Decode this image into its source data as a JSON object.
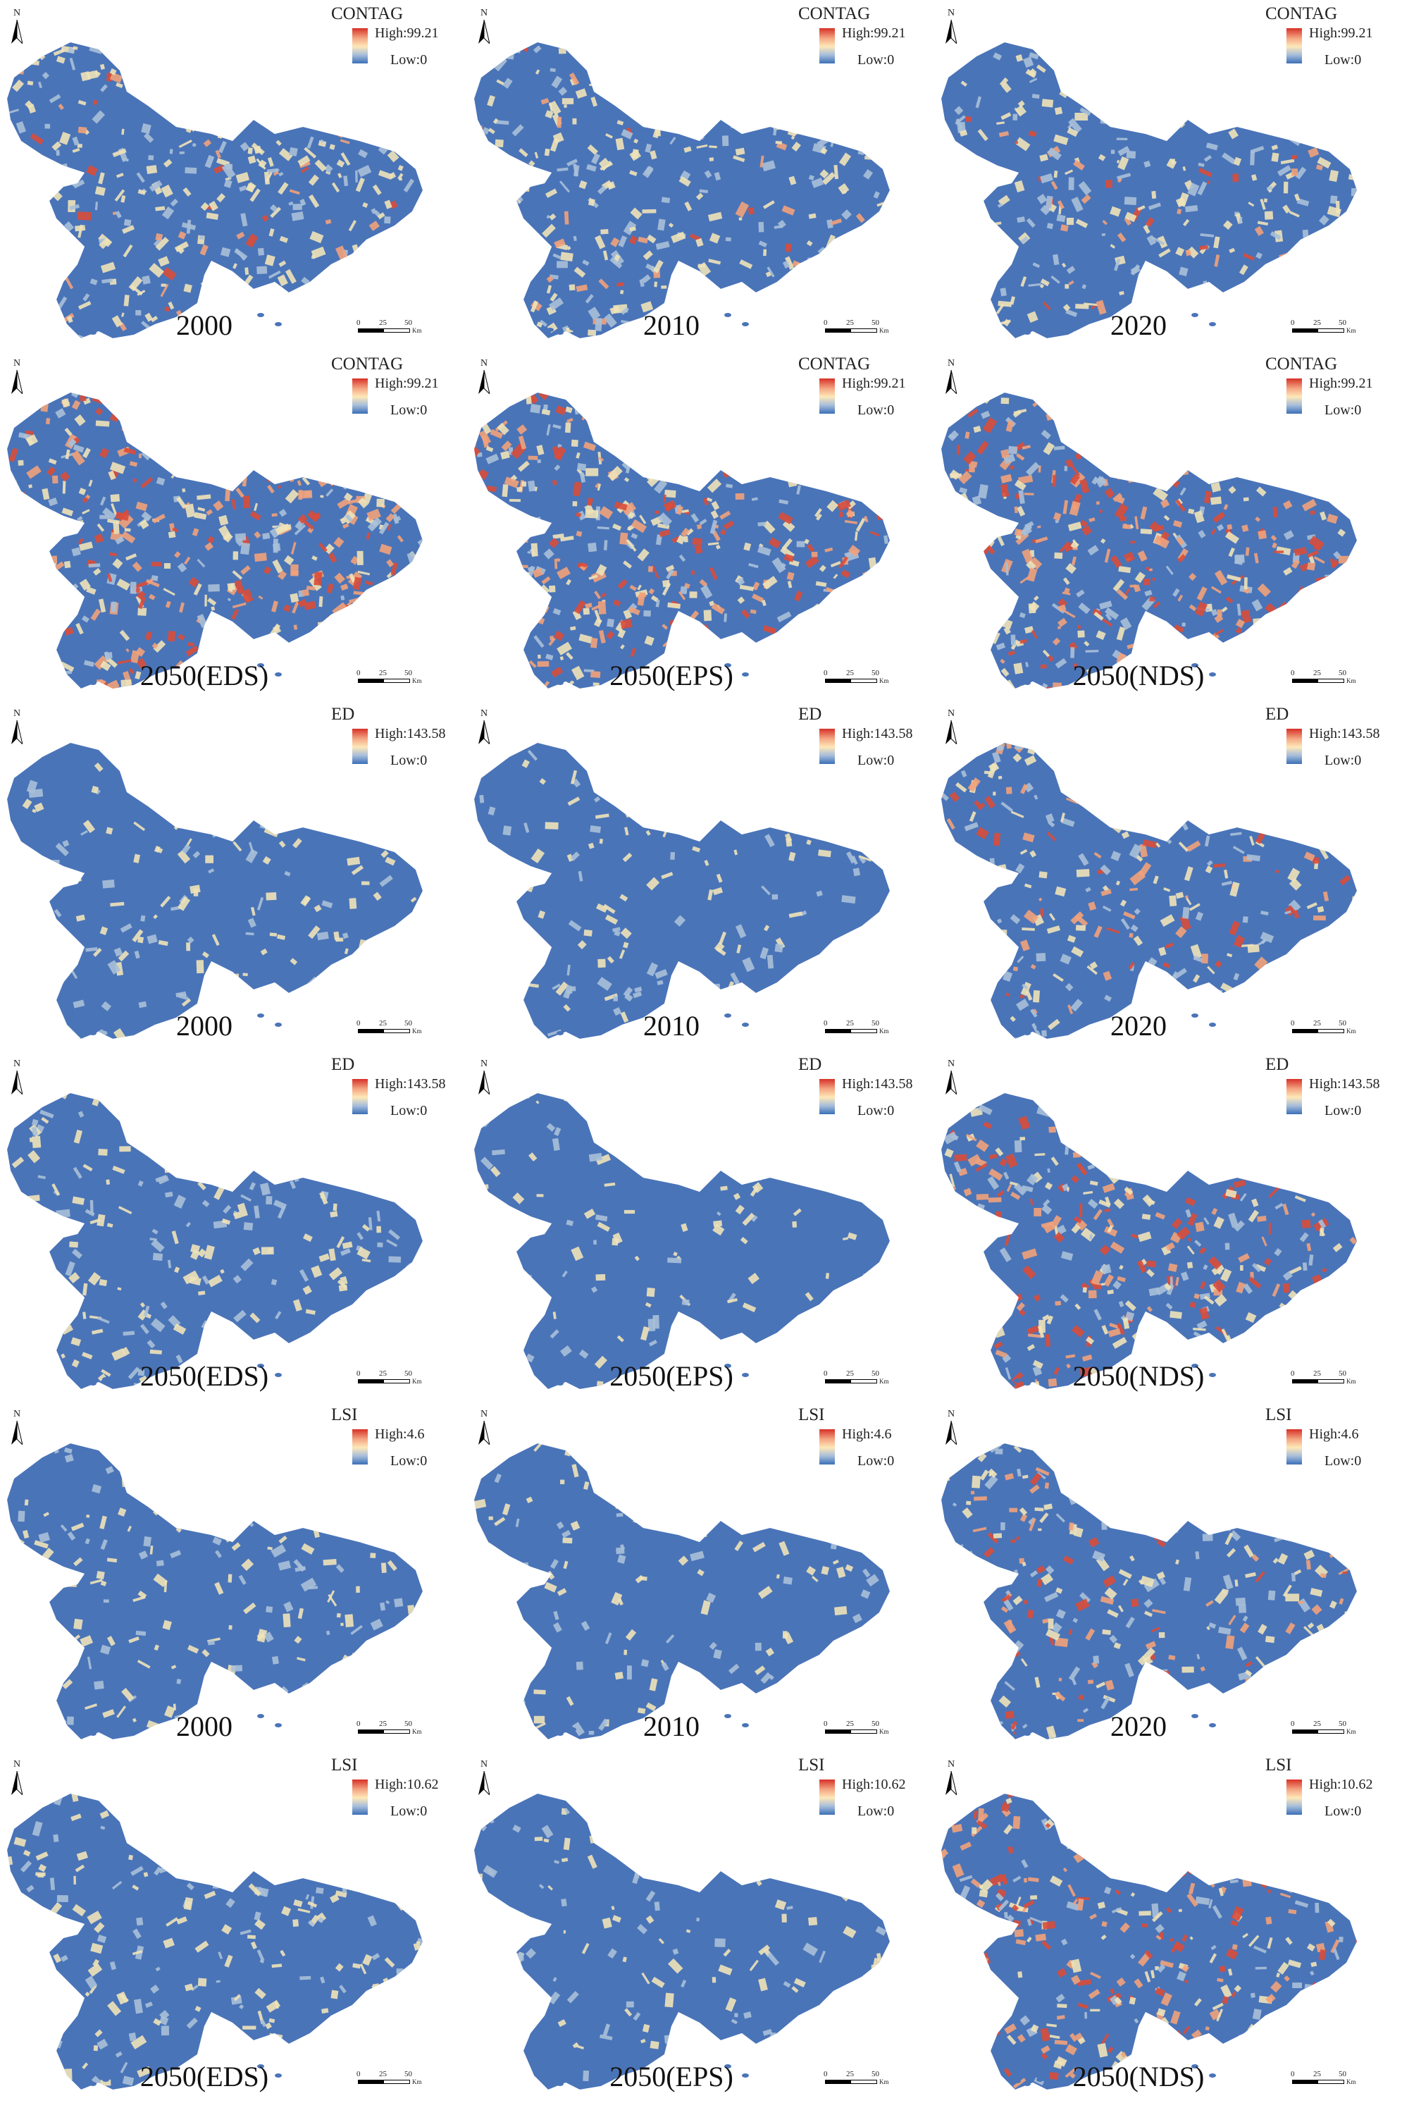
{
  "unit_label": "Km",
  "scale_ticks": [
    "0",
    "25",
    "50"
  ],
  "north_label": "N",
  "panels": [
    {
      "index": "CONTAG",
      "high": "High:99.21",
      "low": "Low:0",
      "year": "2000",
      "heat": 0.55,
      "warm": 0.1
    },
    {
      "index": "CONTAG",
      "high": "High:99.21",
      "low": "Low:0",
      "year": "2010",
      "heat": 0.55,
      "warm": 0.1
    },
    {
      "index": "CONTAG",
      "high": "High:99.21",
      "low": "Low:0",
      "year": "2020",
      "heat": 0.5,
      "warm": 0.08
    },
    {
      "index": "CONTAG",
      "high": "High:99.21",
      "low": "Low:0",
      "year": "2050(EDS)",
      "heat": 0.7,
      "warm": 0.45
    },
    {
      "index": "CONTAG",
      "high": "High:99.21",
      "low": "Low:0",
      "year": "2050(EPS)",
      "heat": 0.72,
      "warm": 0.4
    },
    {
      "index": "CONTAG",
      "high": "High:99.21",
      "low": "Low:0",
      "year": "2050(NDS)",
      "heat": 0.7,
      "warm": 0.45
    },
    {
      "index": "ED",
      "high": "High:143.58",
      "low": "Low:0",
      "year": "2000",
      "heat": 0.25,
      "warm": 0.0
    },
    {
      "index": "ED",
      "high": "High:143.58",
      "low": "Low:0",
      "year": "2010",
      "heat": 0.22,
      "warm": 0.0
    },
    {
      "index": "ED",
      "high": "High:143.58",
      "low": "Low:0",
      "year": "2020",
      "heat": 0.45,
      "warm": 0.18
    },
    {
      "index": "ED",
      "high": "High:143.58",
      "low": "Low:0",
      "year": "2050(EDS)",
      "heat": 0.35,
      "warm": 0.0
    },
    {
      "index": "ED",
      "high": "High:143.58",
      "low": "Low:0",
      "year": "2050(EPS)",
      "heat": 0.18,
      "warm": 0.0
    },
    {
      "index": "ED",
      "high": "High:143.58",
      "low": "Low:0",
      "year": "2050(NDS)",
      "heat": 0.55,
      "warm": 0.35
    },
    {
      "index": "LSI",
      "high": "High:4.6",
      "low": "Low:0",
      "year": "2000",
      "heat": 0.28,
      "warm": 0.0
    },
    {
      "index": "LSI",
      "high": "High:4.6",
      "low": "Low:0",
      "year": "2010",
      "heat": 0.25,
      "warm": 0.0
    },
    {
      "index": "LSI",
      "high": "High:4.6",
      "low": "Low:0",
      "year": "2020",
      "heat": 0.48,
      "warm": 0.22
    },
    {
      "index": "LSI",
      "high": "High:10.62",
      "low": "Low:0",
      "year": "2050(EDS)",
      "heat": 0.35,
      "warm": 0.0
    },
    {
      "index": "LSI",
      "high": "High:10.62",
      "low": "Low:0",
      "year": "2050(EPS)",
      "heat": 0.2,
      "warm": 0.0
    },
    {
      "index": "LSI",
      "high": "High:10.62",
      "low": "Low:0",
      "year": "2050(NDS)",
      "heat": 0.58,
      "warm": 0.38
    }
  ]
}
